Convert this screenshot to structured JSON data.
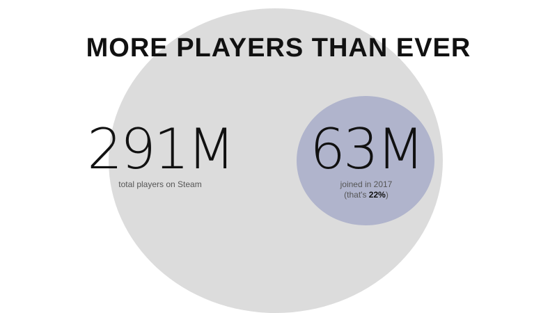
{
  "title": "MORE PLAYERS THAN EVER",
  "total": {
    "value": "291M",
    "label": "total players on Steam"
  },
  "joined": {
    "value": "63M",
    "label": "joined in 2017",
    "share_prefix": "(that's ",
    "share_value": "22%",
    "share_suffix": ")"
  },
  "colors": {
    "total_circle": "#dcdcdc",
    "joined_circle": "#b0b4cc",
    "text": "#111111"
  }
}
